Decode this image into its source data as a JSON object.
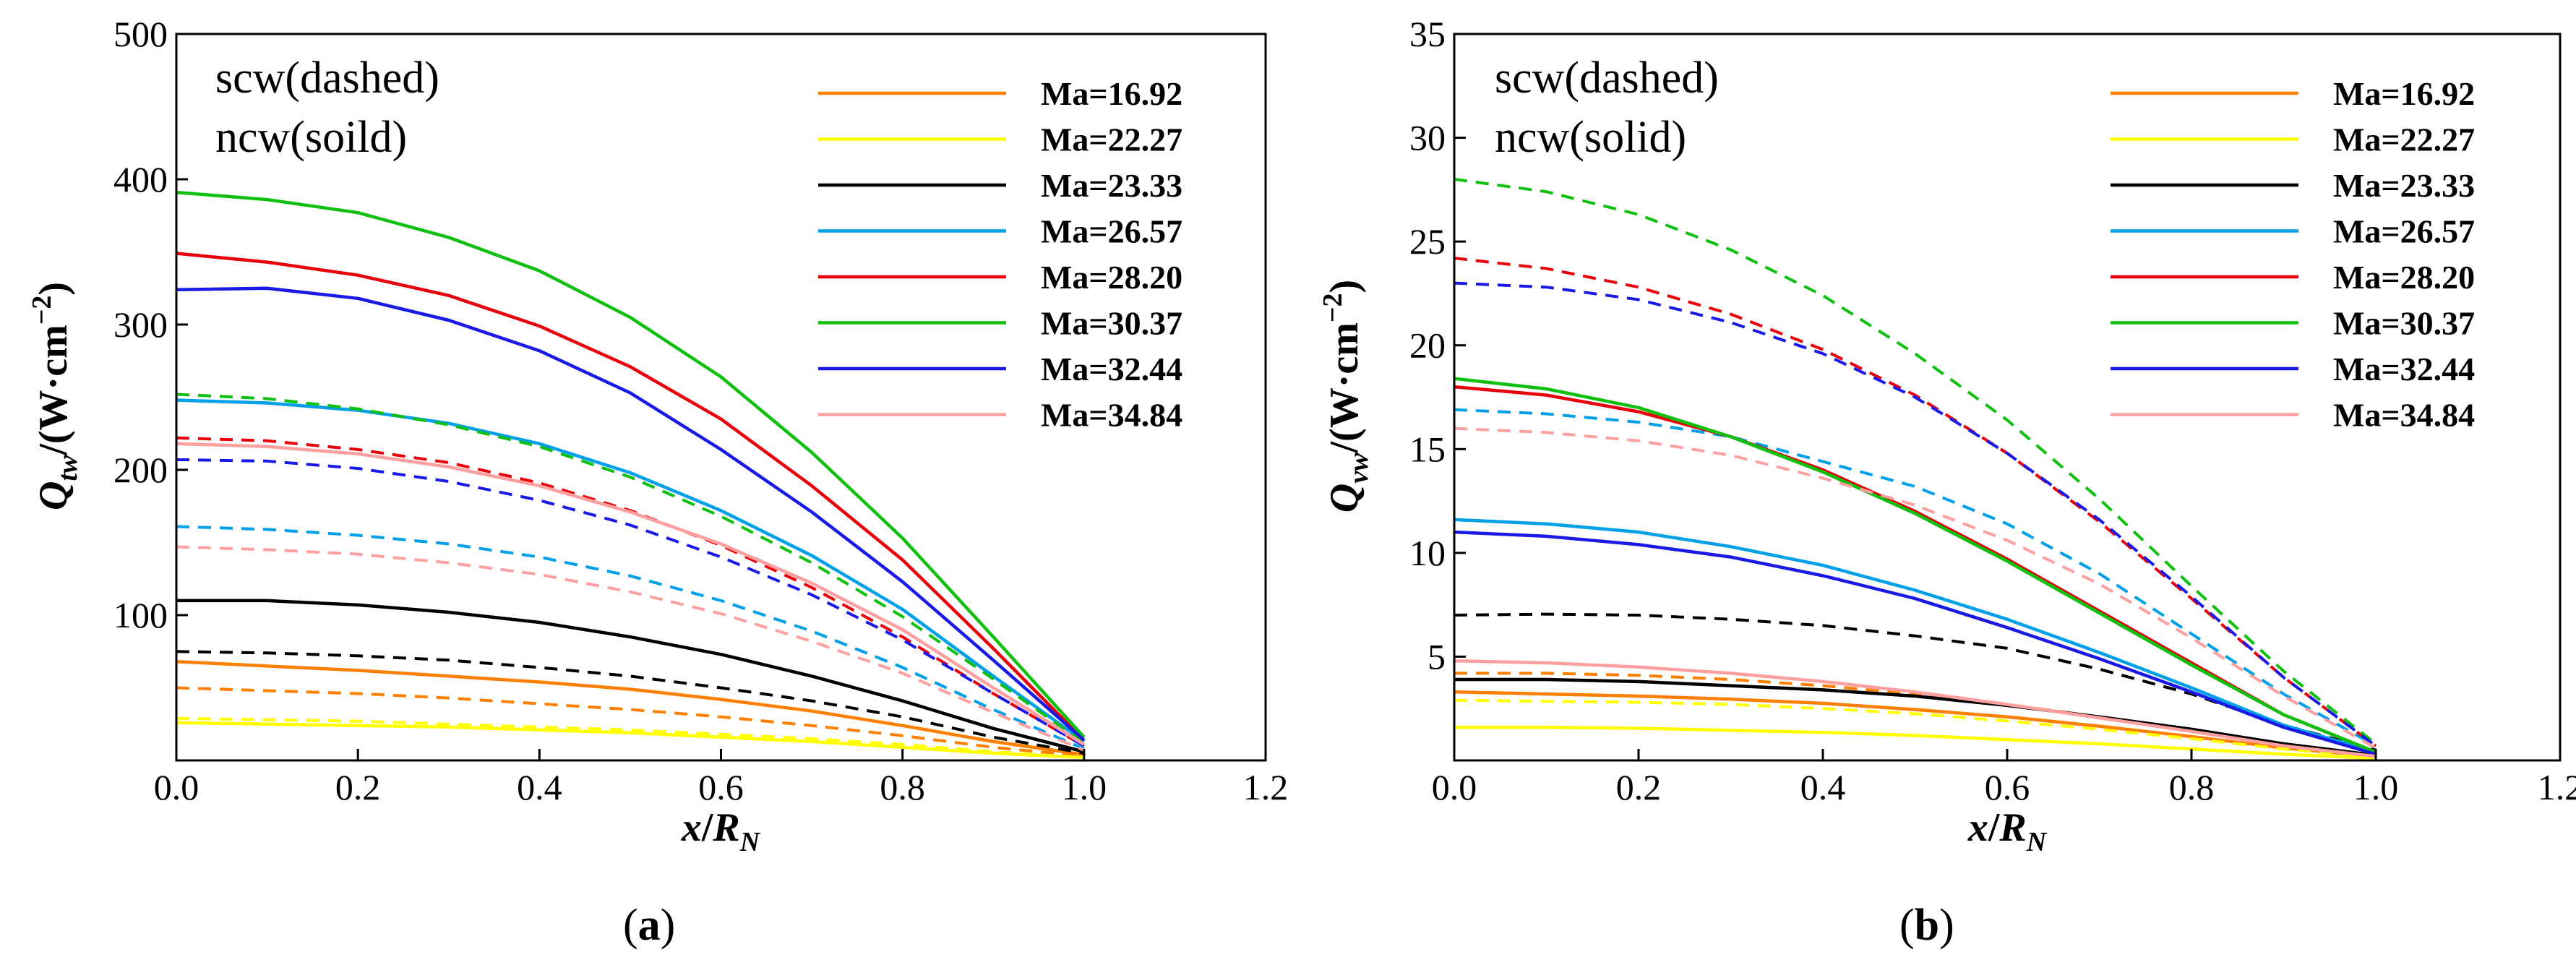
{
  "figure": {
    "panels": [
      {
        "caption_letter": "a",
        "note_line1": "scw(dashed)",
        "note_line2": "ncw(soild)",
        "ylabel_sym": "Q",
        "ylabel_sub": "tw",
        "ylabel_unit": "/(W·cm",
        "ylabel_exp": "−2",
        "ylabel_close": ")",
        "xlabel_sym": "x",
        "xlabel_mid": "/",
        "xlabel_R": "R",
        "xlabel_sub": "N"
      },
      {
        "caption_letter": "b",
        "note_line1": "scw(dashed)",
        "note_line2": "ncw(solid)",
        "ylabel_sym": "Q",
        "ylabel_sub": "vw",
        "ylabel_unit": "/(W·cm",
        "ylabel_exp": "−2",
        "ylabel_close": ")",
        "xlabel_sym": "x",
        "xlabel_mid": "/",
        "xlabel_R": "R",
        "xlabel_sub": "N"
      }
    ]
  },
  "chart_data": [
    {
      "type": "line",
      "title": "",
      "xlabel": "x/R_N",
      "ylabel": "Q_tw/(W·cm^-2)",
      "xlim": [
        0,
        1.2
      ],
      "ylim": [
        0,
        500
      ],
      "xticks": [
        "0.0",
        "0.2",
        "0.4",
        "0.6",
        "0.8",
        "1.0",
        "1.2"
      ],
      "yticks": [
        "100",
        "200",
        "300",
        "400",
        "500"
      ],
      "legend_position": "top-right",
      "x": [
        0.0,
        0.1,
        0.2,
        0.3,
        0.4,
        0.5,
        0.6,
        0.7,
        0.8,
        0.9,
        1.0
      ],
      "series": [
        {
          "name": "Ma=16.92",
          "color": "#ff7f00",
          "solid": [
            68,
            65,
            62,
            58,
            54,
            49,
            42,
            34,
            24,
            13,
            4
          ],
          "dashed": [
            50,
            48,
            46,
            43,
            39,
            35,
            30,
            24,
            17,
            9,
            3
          ]
        },
        {
          "name": "Ma=22.27",
          "color": "#ffff00",
          "solid": [
            26,
            25,
            24,
            23,
            21,
            19,
            16,
            13,
            9,
            5,
            2
          ],
          "dashed": [
            29,
            28,
            27,
            25,
            23,
            21,
            18,
            15,
            11,
            6,
            2
          ]
        },
        {
          "name": "Ma=23.33",
          "color": "#000000",
          "solid": [
            110,
            110,
            107,
            102,
            95,
            85,
            73,
            58,
            41,
            22,
            6
          ],
          "dashed": [
            75,
            74,
            72,
            69,
            64,
            58,
            50,
            41,
            30,
            16,
            5
          ]
        },
        {
          "name": "Ma=26.57",
          "color": "#00a0e8",
          "solid": [
            248,
            246,
            241,
            232,
            218,
            198,
            172,
            141,
            104,
            58,
            13
          ],
          "dashed": [
            161,
            159,
            155,
            149,
            140,
            127,
            110,
            89,
            64,
            35,
            8
          ]
        },
        {
          "name": "Ma=28.20",
          "color": "#e8000b",
          "solid": [
            349,
            343,
            334,
            320,
            299,
            271,
            235,
            189,
            138,
            77,
            14
          ],
          "dashed": [
            222,
            220,
            214,
            205,
            191,
            172,
            148,
            119,
            85,
            46,
            10
          ]
        },
        {
          "name": "Ma=30.37",
          "color": "#10c010",
          "solid": [
            391,
            386,
            377,
            360,
            337,
            305,
            264,
            212,
            153,
            85,
            16
          ],
          "dashed": [
            252,
            249,
            242,
            231,
            216,
            195,
            168,
            136,
            99,
            56,
            12
          ]
        },
        {
          "name": "Ma=32.44",
          "color": "#1a1ae6",
          "solid": [
            324,
            325,
            318,
            303,
            282,
            253,
            214,
            171,
            123,
            69,
            14
          ],
          "dashed": [
            207,
            206,
            201,
            192,
            179,
            162,
            140,
            114,
            83,
            46,
            10
          ]
        },
        {
          "name": "Ma=34.84",
          "color": "#ffa0a0",
          "solid": [
            218,
            216,
            211,
            202,
            189,
            171,
            149,
            122,
            90,
            50,
            11
          ],
          "dashed": [
            147,
            145,
            142,
            136,
            128,
            116,
            101,
            82,
            60,
            33,
            7
          ]
        }
      ]
    },
    {
      "type": "line",
      "title": "",
      "xlabel": "x/R_N",
      "ylabel": "Q_vw/(W·cm^-2)",
      "xlim": [
        0,
        1.2
      ],
      "ylim": [
        0,
        35
      ],
      "xticks": [
        "0.0",
        "0.2",
        "0.4",
        "0.6",
        "0.8",
        "1.0",
        "1.2"
      ],
      "yticks": [
        "5",
        "10",
        "15",
        "20",
        "25",
        "30",
        "35"
      ],
      "legend_position": "top-right",
      "x": [
        0.0,
        0.1,
        0.2,
        0.3,
        0.4,
        0.5,
        0.6,
        0.7,
        0.8,
        0.9,
        1.0
      ],
      "series": [
        {
          "name": "Ma=16.92",
          "color": "#ff7f00",
          "solid": [
            3.3,
            3.2,
            3.1,
            2.95,
            2.75,
            2.45,
            2.1,
            1.65,
            1.15,
            0.6,
            0.2
          ],
          "dashed": [
            4.2,
            4.2,
            4.1,
            3.9,
            3.6,
            3.2,
            2.7,
            2.1,
            1.4,
            0.7,
            0.2
          ]
        },
        {
          "name": "Ma=22.27",
          "color": "#ffff00",
          "solid": [
            1.6,
            1.6,
            1.55,
            1.45,
            1.35,
            1.2,
            1.0,
            0.8,
            0.55,
            0.3,
            0.1
          ],
          "dashed": [
            2.9,
            2.85,
            2.8,
            2.7,
            2.5,
            2.25,
            1.9,
            1.5,
            1.05,
            0.55,
            0.15
          ]
        },
        {
          "name": "Ma=23.33",
          "color": "#000000",
          "solid": [
            3.9,
            3.9,
            3.8,
            3.6,
            3.4,
            3.1,
            2.65,
            2.1,
            1.5,
            0.8,
            0.25
          ],
          "dashed": [
            7.0,
            7.05,
            7.0,
            6.8,
            6.5,
            6.0,
            5.4,
            4.4,
            3.2,
            1.7,
            0.5
          ]
        },
        {
          "name": "Ma=26.57",
          "color": "#00a0e8",
          "solid": [
            11.6,
            11.4,
            11.0,
            10.3,
            9.4,
            8.2,
            6.8,
            5.2,
            3.5,
            1.7,
            0.4
          ],
          "dashed": [
            16.9,
            16.7,
            16.3,
            15.6,
            14.4,
            13.2,
            11.4,
            9.0,
            6.1,
            3.2,
            0.7
          ]
        },
        {
          "name": "Ma=28.20",
          "color": "#e8000b",
          "solid": [
            18.0,
            17.6,
            16.8,
            15.6,
            14.0,
            12.0,
            9.7,
            7.2,
            4.7,
            2.2,
            0.4
          ],
          "dashed": [
            24.2,
            23.7,
            22.8,
            21.5,
            19.8,
            17.6,
            14.8,
            11.5,
            7.8,
            4.0,
            0.7
          ]
        },
        {
          "name": "Ma=30.37",
          "color": "#10c010",
          "solid": [
            18.4,
            17.9,
            17.0,
            15.6,
            13.9,
            11.9,
            9.6,
            7.1,
            4.6,
            2.2,
            0.4
          ],
          "dashed": [
            28.0,
            27.4,
            26.3,
            24.6,
            22.4,
            19.6,
            16.4,
            12.6,
            8.4,
            4.3,
            0.8
          ]
        },
        {
          "name": "Ma=32.44",
          "color": "#1a1ae6",
          "solid": [
            11.0,
            10.8,
            10.4,
            9.8,
            8.9,
            7.8,
            6.4,
            4.9,
            3.3,
            1.6,
            0.3
          ],
          "dashed": [
            23.0,
            22.8,
            22.2,
            21.1,
            19.6,
            17.5,
            14.8,
            11.6,
            7.9,
            4.0,
            0.7
          ]
        },
        {
          "name": "Ma=34.84",
          "color": "#ffa0a0",
          "solid": [
            4.8,
            4.7,
            4.5,
            4.2,
            3.8,
            3.3,
            2.7,
            2.05,
            1.4,
            0.7,
            0.2
          ],
          "dashed": [
            16.0,
            15.8,
            15.4,
            14.7,
            13.6,
            12.3,
            10.6,
            8.5,
            5.9,
            3.1,
            0.6
          ]
        }
      ]
    }
  ]
}
